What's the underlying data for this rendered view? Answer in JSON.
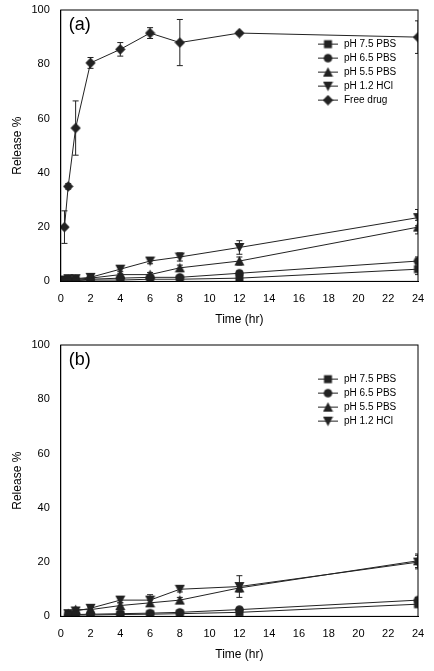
{
  "chart_data": [
    {
      "type": "line",
      "title": "(a)",
      "x_label": "Time (hr)",
      "y_label": "Release %",
      "x": [
        0.25,
        0.5,
        1,
        2,
        4,
        6,
        8,
        12,
        24
      ],
      "xlim": [
        0,
        24
      ],
      "xticks": [
        0,
        2,
        4,
        6,
        8,
        10,
        12,
        14,
        16,
        18,
        20,
        22,
        24
      ],
      "ylim": [
        0,
        100
      ],
      "yticks": [
        0,
        20,
        40,
        60,
        80,
        100
      ],
      "grid": false,
      "legend": "upper right",
      "series": [
        {
          "name": "pH 7.5 PBS",
          "color": "#222222",
          "marker": "square",
          "line_style": "solid",
          "values": [
            0.2,
            0.3,
            0.3,
            0.5,
            0.5,
            0.8,
            0.8,
            1.2,
            4.5
          ],
          "errors": [
            0.3,
            0.3,
            0.3,
            0.3,
            0.3,
            0.5,
            0.5,
            0.8,
            2
          ]
        },
        {
          "name": "pH 6.5 PBS",
          "color": "#222222",
          "marker": "circle",
          "line_style": "solid",
          "values": [
            0.3,
            0.5,
            0.5,
            0.8,
            1.2,
            1.5,
            1.5,
            3,
            7.5
          ],
          "errors": [
            0.3,
            0.3,
            0.3,
            0.3,
            0.5,
            0.5,
            0.5,
            0.8,
            1.5
          ]
        },
        {
          "name": "pH 5.5 PBS",
          "color": "#222222",
          "marker": "triangle",
          "line_style": "solid",
          "values": [
            0.5,
            0.8,
            0.8,
            1.2,
            2.5,
            2.5,
            5,
            7.5,
            20
          ],
          "errors": [
            0.3,
            0.3,
            0.3,
            0.5,
            0.5,
            0.8,
            1,
            1.5,
            2.5
          ]
        },
        {
          "name": "pH 1.2 HCl",
          "color": "#222222",
          "marker": "triangle_down",
          "line_style": "solid",
          "values": [
            0.5,
            1,
            1,
            1.5,
            4.5,
            7.5,
            9,
            12.5,
            23.5
          ],
          "errors": [
            0.3,
            0.3,
            0.3,
            0.5,
            0.8,
            1,
            1.5,
            2.5,
            3
          ]
        },
        {
          "name": "Free drug",
          "color": "#222222",
          "marker": "diamond",
          "line_style": "solid",
          "values": [
            20,
            35,
            56.5,
            80.5,
            85.5,
            91.5,
            88,
            91.5,
            90
          ],
          "errors": [
            6,
            1,
            10,
            2,
            2.5,
            2,
            8.5,
            0.5,
            6
          ]
        }
      ]
    },
    {
      "type": "line",
      "title": "(b)",
      "x_label": "Time (hr)",
      "y_label": "Release %",
      "x": [
        0.5,
        1,
        2,
        4,
        6,
        8,
        12,
        24
      ],
      "xlim": [
        0,
        24
      ],
      "xticks": [
        0,
        2,
        4,
        6,
        8,
        10,
        12,
        14,
        16,
        18,
        20,
        22,
        24
      ],
      "ylim": [
        0,
        100
      ],
      "yticks": [
        0,
        20,
        40,
        60,
        80,
        100
      ],
      "grid": false,
      "legend": "upper right",
      "series": [
        {
          "name": "pH 7.5 PBS",
          "color": "#222222",
          "marker": "square",
          "line_style": "solid",
          "values": [
            0.3,
            0.5,
            0.5,
            0.7,
            0.8,
            1,
            1.5,
            4.5
          ],
          "errors": [
            0.3,
            0.3,
            0.3,
            0.3,
            0.3,
            0.5,
            0.5,
            1
          ]
        },
        {
          "name": "pH 6.5 PBS",
          "color": "#222222",
          "marker": "circle",
          "line_style": "solid",
          "values": [
            0.5,
            0.7,
            0.8,
            1,
            1.2,
            1.5,
            2.5,
            6
          ],
          "errors": [
            0.3,
            0.3,
            0.3,
            0.5,
            0.5,
            0.5,
            0.8,
            1
          ]
        },
        {
          "name": "pH 5.5 PBS",
          "color": "#222222",
          "marker": "triangle",
          "line_style": "solid",
          "values": [
            1,
            2.5,
            2.5,
            4,
            5,
            6,
            10.5,
            20.5
          ],
          "errors": [
            0.5,
            0.5,
            0.8,
            1,
            1,
            1,
            1.5,
            2.5
          ]
        },
        {
          "name": "pH 1.2 HCl",
          "color": "#222222",
          "marker": "triangle_down",
          "line_style": "solid",
          "values": [
            1,
            2,
            3,
            6,
            6,
            10,
            11,
            20
          ],
          "errors": [
            0.5,
            0.5,
            0.8,
            1,
            2,
            1,
            4,
            2.5
          ]
        }
      ]
    }
  ]
}
